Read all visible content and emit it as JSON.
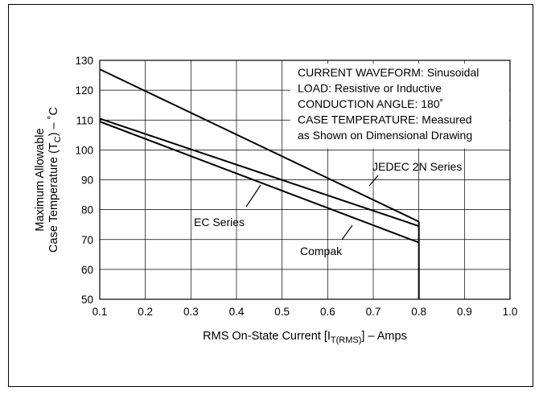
{
  "chart_data": {
    "type": "line",
    "xlabel": {
      "main": "RMS On-State Current [I",
      "sub": "T(RMS)",
      "tail": "] – Amps"
    },
    "ylabel": {
      "line1": "Maximum Allowable",
      "line2_pre": "Case Temperature (T",
      "line2_sub": "C",
      "line2_post": ") – ˚C"
    },
    "xlim": [
      0.1,
      1.0
    ],
    "ylim": [
      50,
      130
    ],
    "x_ticks": [
      "0.1",
      "0.2",
      "0.3",
      "0.4",
      "0.5",
      "0.6",
      "0.7",
      "0.8",
      "0.9",
      "1.0"
    ],
    "y_ticks": [
      "50",
      "60",
      "70",
      "80",
      "90",
      "100",
      "110",
      "120",
      "130"
    ],
    "grid": true,
    "conditions": [
      "CURRENT WAVEFORM: Sinusoidal",
      "LOAD: Resistive or Inductive",
      "CONDUCTION ANGLE: 180˚",
      "CASE TEMPERATURE: Measured",
      "as Shown on Dimensional Drawing"
    ],
    "series": [
      {
        "name": "JEDEC 2N Series",
        "x": [
          0.1,
          0.8
        ],
        "y": [
          127,
          76
        ]
      },
      {
        "name": "EC Series",
        "x": [
          0.1,
          0.8
        ],
        "y": [
          110.5,
          74.5
        ]
      },
      {
        "name": "Compak",
        "x": [
          0.1,
          0.8
        ],
        "y": [
          109.5,
          69
        ]
      }
    ],
    "drop_line": {
      "x": 0.8,
      "y_from": 76,
      "y_to": 50
    }
  }
}
